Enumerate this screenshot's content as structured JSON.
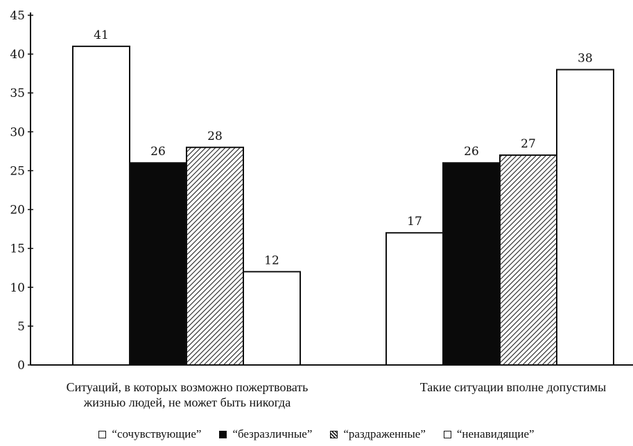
{
  "chart_data": {
    "type": "bar",
    "categories": [
      "Ситуаций, в которых возможно пожертвовать жизнью людей, не может быть никогда",
      "Такие ситуации вполне допустимы"
    ],
    "category_lines": [
      [
        "Ситуаций, в которых возможно пожертвовать",
        "жизнью людей, не может быть никогда"
      ],
      [
        "Такие ситуации вполне допустимы"
      ]
    ],
    "series": [
      {
        "name": "“сочувствующие”",
        "values": [
          41,
          17
        ],
        "fill": "white"
      },
      {
        "name": "“безразличные”",
        "values": [
          26,
          26
        ],
        "fill": "black"
      },
      {
        "name": "“раздраженные”",
        "values": [
          28,
          27
        ],
        "fill": "hatch"
      },
      {
        "name": "“ненавидящие”",
        "values": [
          12,
          38
        ],
        "fill": "white"
      }
    ],
    "value_labels": [
      [
        "41",
        "17"
      ],
      [
        "26",
        "26"
      ],
      [
        "28",
        "27"
      ],
      [
        "12",
        "38"
      ]
    ],
    "ylim": [
      0,
      45
    ],
    "yticks": [
      "0",
      "5",
      "10",
      "15",
      "20",
      "25",
      "30",
      "35",
      "40",
      "45"
    ],
    "title": "",
    "xlabel": "",
    "ylabel": "",
    "grid": false,
    "legend_position": "bottom"
  }
}
